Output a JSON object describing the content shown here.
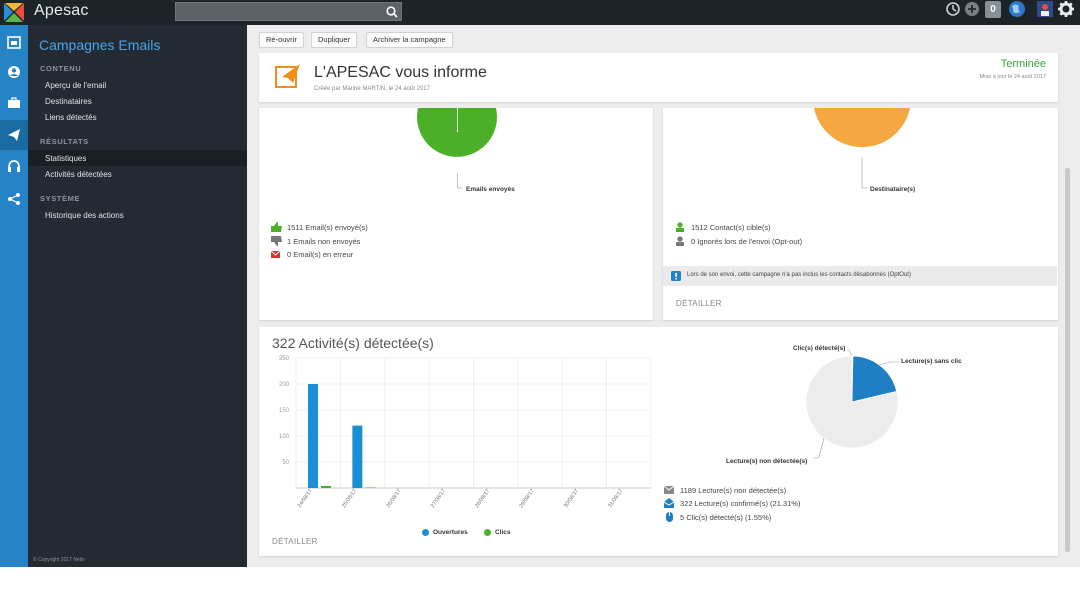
{
  "app": {
    "name": "Apesac",
    "copyright": "© Copyright 2017 Nelis"
  },
  "topbar": {
    "notification_count": "0"
  },
  "sidebar": {
    "title": "Campagnes Emails",
    "sections": [
      {
        "label": "CONTENU",
        "items": [
          "Aperçu de l'email",
          "Destinataires",
          "Liens détectés"
        ]
      },
      {
        "label": "RÉSULTATS",
        "items": [
          "Statistiques",
          "Activités détectées"
        ]
      },
      {
        "label": "SYSTÈME",
        "items": [
          "Historique des actions"
        ]
      }
    ],
    "active_item": "Statistiques"
  },
  "toolbar": {
    "reopen": "Ré-ouvrir",
    "duplicate": "Dupliquer",
    "archive": "Archiver la campagne"
  },
  "campaign": {
    "title": "L'APESAC vous informe",
    "created": "Créée par Marine MARTIN, le 24 août 2017",
    "status": "Terminée",
    "updated": "Mise à jour le 24 août 2017"
  },
  "emails_card": {
    "pie_label": "Emails envoyés",
    "rows": [
      "1511 Email(s) envoyé(s)",
      "1 Emails non envoyés",
      "0 Email(s) en erreur"
    ]
  },
  "recipients_card": {
    "pie_label": "Destinataire(s)",
    "rows": [
      "1512 Contact(s) cible(s)",
      "0 Ignorés lors de l'envoi (Opt-out)"
    ],
    "info": "Lors de son envoi, cette campagne n'a pas inclus les contacts désabonnés (OptOut)",
    "detail": "DÉTAILLER"
  },
  "activity": {
    "title": "322 Activité(s) détectée(s)",
    "detail": "DÉTAILLER",
    "pie_labels": {
      "clicks": "Clic(s) détecté(s)",
      "reads_no_click": "Lecture(s) sans clic",
      "undetected": "Lecture(s) non détectée(s)"
    },
    "rows": [
      "1189 Lecture(s) non détectée(s)",
      "322 Lecture(s) confirmé(s) (21.31%)",
      "5 Clic(s) détecté(s) (1.55%)"
    ]
  },
  "colors": {
    "green": "#4caf28",
    "orange": "#f5a742",
    "blue": "#1e7fc4",
    "accent": "#2683c5"
  },
  "chart_data": [
    {
      "type": "bar",
      "categories": [
        "24/08/17",
        "25/08/17",
        "26/08/17",
        "27/08/17",
        "28/08/17",
        "29/08/17",
        "30/08/17",
        "31/08/17"
      ],
      "series": [
        {
          "name": "Ouvertures",
          "values": [
            200,
            120,
            0,
            0,
            0,
            0,
            0,
            0
          ],
          "color": "#1a8fd1"
        },
        {
          "name": "Clics",
          "values": [
            4,
            1,
            0,
            0,
            0,
            0,
            0,
            0
          ],
          "color": "#4caf28"
        }
      ],
      "yticks": [
        50,
        100,
        150,
        200,
        250
      ],
      "ylim": [
        0,
        250
      ],
      "legend": "bottom"
    },
    {
      "type": "pie",
      "labels": [
        "Clic(s) détecté(s)",
        "Lecture(s) sans clic",
        "Lecture(s) non détectée(s)"
      ],
      "values": [
        5,
        317,
        1189
      ],
      "colors": [
        "#1e7fc4",
        "#1e7fc4",
        "#ececec"
      ]
    }
  ]
}
